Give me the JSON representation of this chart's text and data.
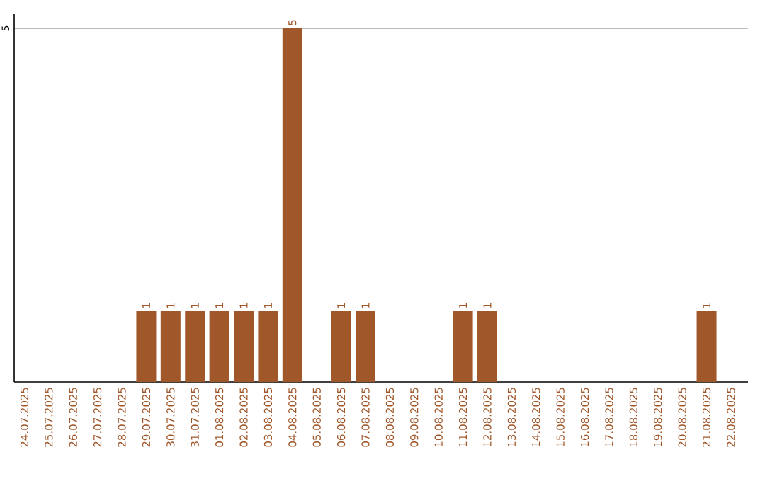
{
  "chart_data": {
    "type": "bar",
    "categories": [
      "24.07.2025",
      "25.07.2025",
      "26.07.2025",
      "27.07.2025",
      "28.07.2025",
      "29.07.2025",
      "30.07.2025",
      "31.07.2025",
      "01.08.2025",
      "02.08.2025",
      "03.08.2025",
      "04.08.2025",
      "05.08.2025",
      "06.08.2025",
      "07.08.2025",
      "08.08.2025",
      "09.08.2025",
      "10.08.2025",
      "11.08.2025",
      "12.08.2025",
      "13.08.2025",
      "14.08.2025",
      "15.08.2025",
      "16.08.2025",
      "17.08.2025",
      "18.08.2025",
      "19.08.2025",
      "20.08.2025",
      "21.08.2025",
      "22.08.2025"
    ],
    "values": [
      0,
      0,
      0,
      0,
      0,
      1,
      1,
      1,
      1,
      1,
      1,
      5,
      0,
      1,
      1,
      0,
      0,
      0,
      1,
      1,
      0,
      0,
      0,
      0,
      0,
      0,
      0,
      0,
      1,
      0
    ],
    "value_labels": [
      null,
      null,
      null,
      null,
      null,
      "1",
      "1",
      "1",
      "1",
      "1",
      "1",
      "5",
      null,
      "1",
      "1",
      null,
      null,
      null,
      "1",
      "1",
      null,
      null,
      null,
      null,
      null,
      null,
      null,
      null,
      "1",
      null
    ],
    "color": "#a0572a",
    "ylim": [
      0,
      5.2
    ],
    "yticks": [
      5
    ],
    "grid": "y"
  }
}
